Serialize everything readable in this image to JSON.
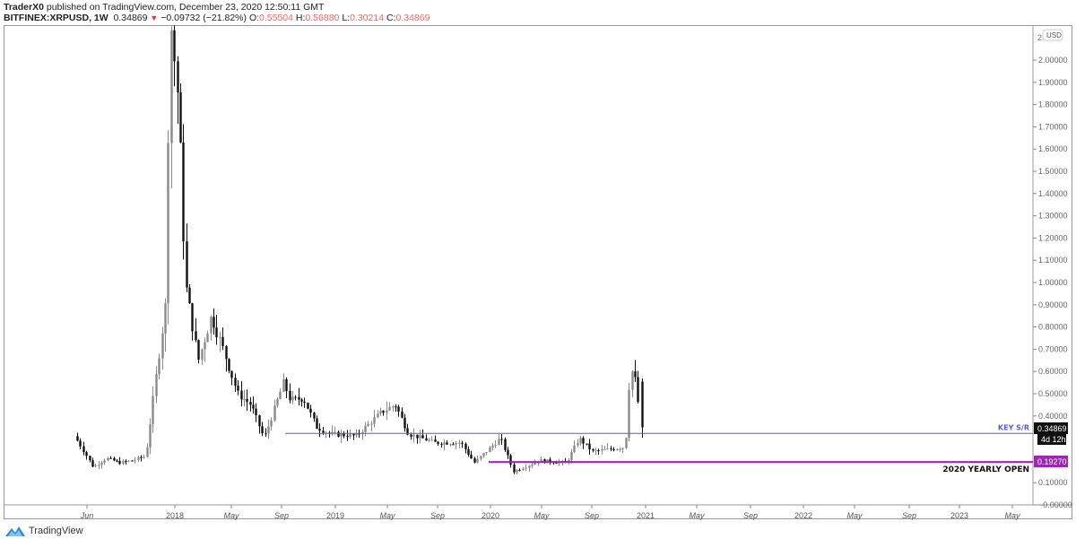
{
  "header": {
    "publisher": "TraderX0",
    "published_text": " published on TradingView.com, December 23, 2020 12:50:11 GMT",
    "symbol": "BITFINEX:XRPUSD, 1W",
    "last": "0.34869",
    "direction_icon": "triangle-down-icon",
    "change": "−0.09732 (−21.82%)",
    "ohlc": [
      {
        "label": "O:",
        "value": "0.55504"
      },
      {
        "label": "H:",
        "value": "0.56880"
      },
      {
        "label": "L:",
        "value": "0.30214"
      },
      {
        "label": "C:",
        "value": "0.34869"
      }
    ]
  },
  "footer": {
    "logo_text": "TradingView",
    "logo_icon": "tradingview-logo-icon"
  },
  "price_axis": {
    "currency_button": "USD",
    "top_partial_label": "2",
    "ticks": [
      "2.00000",
      "1.90000",
      "1.80000",
      "1.70000",
      "1.60000",
      "1.50000",
      "1.40000",
      "1.30000",
      "1.20000",
      "1.10000",
      "1.00000",
      "0.90000",
      "0.80000",
      "0.70000",
      "0.60000",
      "0.50000",
      "0.40000",
      "0.10000",
      "−0.00000"
    ],
    "last_price_label": "0.34869",
    "countdown_label": "4d 12h",
    "yearly_open_label": "0.19270"
  },
  "time_axis": {
    "ticks": [
      {
        "label": "Jun",
        "x": 97,
        "bold": false
      },
      {
        "label": "2018",
        "x": 195,
        "bold": true
      },
      {
        "label": "May",
        "x": 258,
        "bold": false
      },
      {
        "label": "Sep",
        "x": 314,
        "bold": false
      },
      {
        "label": "2019",
        "x": 374,
        "bold": true
      },
      {
        "label": "May",
        "x": 432,
        "bold": false
      },
      {
        "label": "Sep",
        "x": 488,
        "bold": false
      },
      {
        "label": "2020",
        "x": 547,
        "bold": true
      },
      {
        "label": "May",
        "x": 604,
        "bold": false
      },
      {
        "label": "Sep",
        "x": 660,
        "bold": false
      },
      {
        "label": "2021",
        "x": 720,
        "bold": true
      },
      {
        "label": "May",
        "x": 777,
        "bold": false
      },
      {
        "label": "Sep",
        "x": 837,
        "bold": false
      },
      {
        "label": "2022",
        "x": 896,
        "bold": true
      },
      {
        "label": "May",
        "x": 953,
        "bold": false
      },
      {
        "label": "Sep",
        "x": 1014,
        "bold": false
      },
      {
        "label": "2023",
        "x": 1070,
        "bold": true
      },
      {
        "label": "May",
        "x": 1129,
        "bold": false
      }
    ]
  },
  "annotations": {
    "key_sr": {
      "label": "KEY S/R",
      "price": 0.3215,
      "color": "#5b5bd6"
    },
    "yearly_open": {
      "label": "2020 YEARLY OPEN",
      "price": 0.1927,
      "color": "#9c27b0"
    }
  },
  "colors": {
    "up_candle": "#8a8a8a",
    "down_candle": "#111111",
    "key_sr_line": "#5b5bd6",
    "yearly_open_line": "#9c27b0",
    "last_price_bg": "#111111",
    "yearly_open_bg": "#9c27b0",
    "change_down": "#e03131",
    "ohlc_value": "#ee6b6b"
  },
  "chart_data": {
    "type": "candlestick",
    "title": "BITFINEX:XRPUSD, 1W",
    "xlabel": "",
    "ylabel": "USD",
    "ylim": [
      0,
      2.0
    ],
    "grid": false,
    "timeframe": "1W",
    "annotations": [
      {
        "type": "hline",
        "label": "KEY S/R",
        "price": 0.3215
      },
      {
        "type": "hline",
        "label": "2020 YEARLY OPEN",
        "price": 0.1927
      }
    ],
    "approx_weekly_closes": {
      "description": "Approximate weekly price path read from candle positions",
      "points": [
        {
          "date": "2017-05",
          "price": 0.36
        },
        {
          "date": "2017-06",
          "price": 0.27
        },
        {
          "date": "2017-07",
          "price": 0.17
        },
        {
          "date": "2017-08",
          "price": 0.21
        },
        {
          "date": "2017-09",
          "price": 0.19
        },
        {
          "date": "2017-10",
          "price": 0.2
        },
        {
          "date": "2017-11",
          "price": 0.22
        },
        {
          "date": "2017-12-mid",
          "price": 0.9
        },
        {
          "date": "2017-12-end",
          "price": 2.2
        },
        {
          "date": "2018-01-mid",
          "price": 1.8
        },
        {
          "date": "2018-02",
          "price": 1.0
        },
        {
          "date": "2018-03",
          "price": 0.65
        },
        {
          "date": "2018-04",
          "price": 0.85
        },
        {
          "date": "2018-05",
          "price": 0.68
        },
        {
          "date": "2018-06",
          "price": 0.5
        },
        {
          "date": "2018-07",
          "price": 0.45
        },
        {
          "date": "2018-08",
          "price": 0.3
        },
        {
          "date": "2018-09-mid",
          "price": 0.55
        },
        {
          "date": "2018-10",
          "price": 0.47
        },
        {
          "date": "2018-11",
          "price": 0.48
        },
        {
          "date": "2018-12",
          "price": 0.35
        },
        {
          "date": "2019-01",
          "price": 0.32
        },
        {
          "date": "2019-03",
          "price": 0.31
        },
        {
          "date": "2019-05",
          "price": 0.42
        },
        {
          "date": "2019-06",
          "price": 0.45
        },
        {
          "date": "2019-07",
          "price": 0.32
        },
        {
          "date": "2019-09",
          "price": 0.28
        },
        {
          "date": "2019-11",
          "price": 0.28
        },
        {
          "date": "2019-12",
          "price": 0.19
        },
        {
          "date": "2020-02",
          "price": 0.3
        },
        {
          "date": "2020-03",
          "price": 0.15
        },
        {
          "date": "2020-05",
          "price": 0.2
        },
        {
          "date": "2020-07",
          "price": 0.19
        },
        {
          "date": "2020-08",
          "price": 0.3
        },
        {
          "date": "2020-09",
          "price": 0.24
        },
        {
          "date": "2020-11-mid",
          "price": 0.26
        },
        {
          "date": "2020-11-end",
          "price": 0.6
        },
        {
          "date": "2020-12-early",
          "price": 0.6
        },
        {
          "date": "2020-12-23",
          "price": 0.34869
        }
      ]
    },
    "last_candle": {
      "open": 0.55504,
      "high": 0.5688,
      "low": 0.30214,
      "close": 0.34869
    }
  }
}
